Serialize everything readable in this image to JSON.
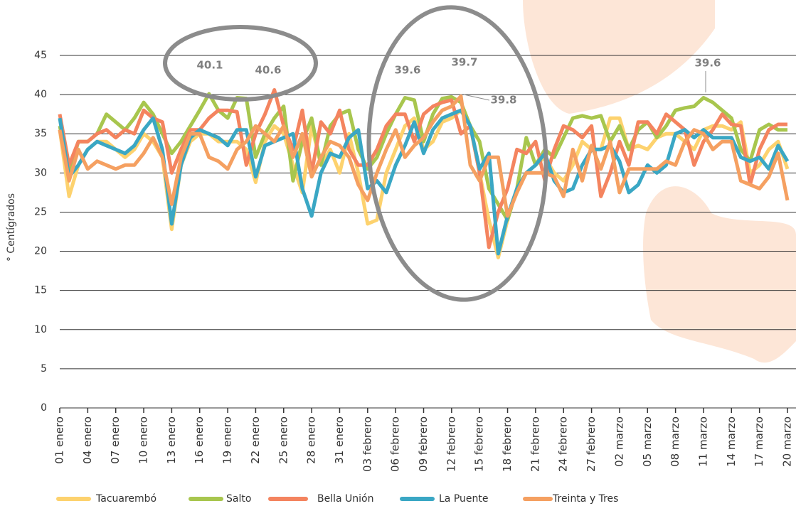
{
  "chart_data": {
    "type": "line",
    "y_label": "° Centígrados",
    "categories": [
      "01 enero",
      null,
      null,
      "04 enero",
      null,
      null,
      "07 enero",
      null,
      null,
      "10 enero",
      null,
      null,
      "13 enero",
      null,
      null,
      "16 enero",
      null,
      null,
      "19 enero",
      null,
      null,
      "22 enero",
      null,
      null,
      "25 enero",
      null,
      null,
      "28 enero",
      null,
      null,
      "31 enero",
      null,
      null,
      "03 febrero",
      null,
      null,
      "06 febrero",
      null,
      null,
      "09 febrero",
      null,
      null,
      "12 febrero",
      null,
      null,
      "15 febrero",
      null,
      null,
      "18 febrero",
      null,
      null,
      "21 febrero",
      null,
      null,
      "24 febrero",
      null,
      null,
      "27 febrero",
      null,
      null,
      "02 marzo",
      null,
      null,
      "05 marzo",
      null,
      null,
      "08 marzo",
      null,
      null,
      "11 marzo",
      null,
      null,
      "14 marzo",
      null,
      null,
      "17 marzo",
      null,
      null,
      "20 marzo"
    ],
    "series": [
      {
        "name": "Tacuarembó",
        "color": "#fdd26e",
        "values": [
          35.5,
          27,
          31,
          33,
          34,
          34,
          33,
          32,
          33,
          35,
          34,
          32,
          22.8,
          31,
          34,
          35,
          35,
          34,
          34,
          34,
          33,
          28.8,
          34,
          36,
          35,
          31,
          27.5,
          36,
          31,
          33,
          30,
          35,
          30,
          23.5,
          24,
          30,
          33,
          36,
          37,
          33,
          34,
          36.5,
          37,
          38,
          36,
          30,
          24,
          19.2,
          24,
          28,
          30,
          31,
          32,
          30,
          29,
          31,
          34,
          33,
          33,
          37,
          37,
          33,
          33.5,
          33,
          34.5,
          35,
          35,
          34,
          33,
          35.5,
          36,
          36,
          35.5,
          36.5,
          30,
          31,
          33,
          34,
          30.5
        ]
      },
      {
        "name": "Salto",
        "color": "#a8c64e",
        "values": [
          36,
          30,
          34,
          34,
          35,
          37.5,
          36.5,
          35.5,
          37,
          39,
          37.5,
          35,
          32.5,
          34,
          36,
          38,
          40.1,
          38,
          37,
          39.6,
          39.5,
          32,
          35,
          37,
          38.5,
          29,
          34,
          37,
          31,
          36,
          37.5,
          38,
          33,
          30.5,
          32,
          35,
          37.5,
          39.6,
          39.3,
          34,
          37.5,
          39.5,
          39.7,
          39,
          36,
          34,
          28,
          26,
          24,
          28,
          34.5,
          31,
          33,
          32,
          34.5,
          37,
          37.3,
          37,
          37.3,
          34,
          36,
          33,
          35.5,
          36.5,
          34.5,
          36,
          38,
          38.3,
          38.5,
          39.6,
          39,
          38,
          37,
          33,
          31.5,
          35.5,
          36.2,
          35.5,
          35.5
        ]
      },
      {
        "name": "Bella Unión",
        "color": "#f4845f",
        "values": [
          37.5,
          31,
          34,
          34,
          35,
          35.5,
          34.5,
          35.5,
          35,
          38,
          37,
          36.5,
          30,
          33,
          35.5,
          35.5,
          37,
          38,
          38,
          37.8,
          31,
          35,
          37.5,
          40.6,
          36,
          33,
          38,
          30,
          36.5,
          35,
          38,
          33,
          31,
          31,
          33,
          36,
          37.5,
          37.5,
          34,
          37.5,
          38.5,
          39,
          39.3,
          35,
          36,
          30,
          20.5,
          25,
          28,
          33,
          32.5,
          34,
          29,
          33,
          36,
          35.5,
          34.5,
          36,
          27,
          30,
          34,
          31,
          36.5,
          36.5,
          35,
          37.5,
          36.5,
          35.5,
          31,
          34,
          35.5,
          37.5,
          36.2,
          36,
          28.5,
          33,
          35.5,
          36.2,
          36.2
        ]
      },
      {
        "name": "La Puente",
        "color": "#3aa7c4",
        "values": [
          37,
          29.5,
          31,
          33,
          34,
          33.5,
          33,
          32.5,
          33.5,
          35.5,
          37,
          33,
          23.5,
          31,
          34.5,
          35.5,
          35,
          34.5,
          33.5,
          35.5,
          35.5,
          29.5,
          33.5,
          34,
          34.5,
          35,
          28,
          24.5,
          30,
          32.5,
          32,
          34.5,
          35.5,
          28,
          29,
          27.5,
          31,
          33.5,
          36.5,
          32.5,
          35.5,
          37,
          37.5,
          38,
          36,
          30.5,
          32.5,
          19.7,
          24.5,
          28,
          30,
          31,
          32.5,
          29,
          27.5,
          28,
          31,
          33,
          33,
          33.5,
          31.5,
          27.5,
          28.5,
          31,
          30,
          31,
          35,
          35.5,
          34.5,
          35.5,
          34.5,
          34.5,
          34.5,
          32,
          31.5,
          32,
          30.5,
          33.5,
          31.5
        ]
      },
      {
        "name": "Treinta y Tres",
        "color": "#f5a061",
        "values": [
          35.5,
          29,
          33,
          30.5,
          31.5,
          31,
          30.5,
          31,
          31,
          32.5,
          34.5,
          32,
          26,
          32,
          35,
          35,
          32,
          31.5,
          30.5,
          33,
          34,
          36,
          35,
          34,
          36,
          32,
          35,
          29.5,
          32,
          34,
          33.5,
          32,
          28.5,
          26.5,
          30,
          33,
          35.5,
          32,
          33.5,
          34.5,
          36.5,
          38,
          38.5,
          39.8,
          31,
          29,
          32,
          32,
          24.5,
          27.5,
          30,
          30,
          30,
          29.5,
          27,
          33,
          29,
          33.5,
          30.5,
          34,
          27.5,
          30.5,
          30.5,
          30.5,
          30.5,
          31.5,
          31,
          34,
          35.5,
          35,
          33,
          34,
          34,
          29,
          28.5,
          28,
          29.5,
          32.5,
          26.5
        ]
      }
    ],
    "annotations": [
      "40.1",
      "40.6",
      "39.6",
      "39.7",
      "39.8",
      "39.6"
    ],
    "ylim": [
      0,
      45
    ],
    "yticks": [
      0,
      5,
      10,
      15,
      20,
      25,
      30,
      35,
      40,
      45
    ],
    "grid": true
  }
}
